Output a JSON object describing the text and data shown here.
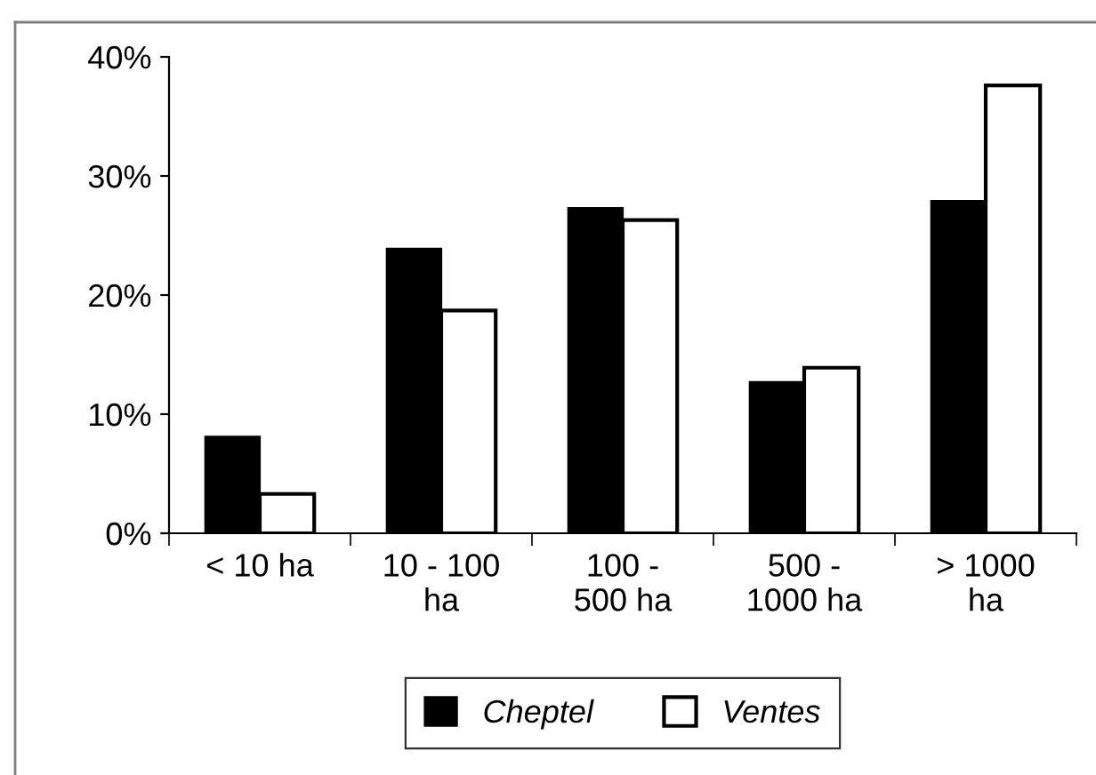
{
  "chart_data": {
    "type": "bar",
    "categories": [
      "< 10 ha",
      "10 - 100\nha",
      "100 -\n500 ha",
      "500 -\n1000 ha",
      "> 1000\nha"
    ],
    "series": [
      {
        "name": "Cheptel",
        "color": "#000000",
        "values": [
          8.1,
          23.9,
          27.3,
          12.7,
          27.9
        ]
      },
      {
        "name": "Ventes",
        "color": "#ffffff",
        "values": [
          3.3,
          18.7,
          26.3,
          13.9,
          37.6
        ]
      }
    ],
    "ylim": [
      0,
      40
    ],
    "yticks": [
      {
        "value": 0,
        "label": "0%"
      },
      {
        "value": 10,
        "label": "10%"
      },
      {
        "value": 20,
        "label": "20%"
      },
      {
        "value": 30,
        "label": "30%"
      },
      {
        "value": 40,
        "label": "40%"
      }
    ],
    "legend": "bottom"
  }
}
